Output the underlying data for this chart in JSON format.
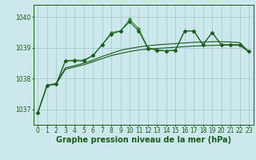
{
  "background_color": "#cce8ec",
  "grid_color": "#aacccc",
  "line_color_dark": "#1a5c1a",
  "line_color_light": "#3a8a3a",
  "xlabel": "Graphe pression niveau de la mer (hPa)",
  "xlabel_fontsize": 7,
  "ylim": [
    1036.5,
    1040.4
  ],
  "xlim": [
    -0.5,
    23.5
  ],
  "yticks": [
    1037,
    1038,
    1039,
    1040
  ],
  "xticks": [
    0,
    1,
    2,
    3,
    4,
    5,
    6,
    7,
    8,
    9,
    10,
    11,
    12,
    13,
    14,
    15,
    16,
    17,
    18,
    19,
    20,
    21,
    22,
    23
  ],
  "series_smooth_x": [
    0,
    1,
    2,
    3,
    4,
    5,
    6,
    7,
    8,
    9,
    10,
    11,
    12,
    13,
    14,
    15,
    16,
    17,
    18,
    19,
    20,
    21,
    22,
    23
  ],
  "series_smooth_y": [
    1036.9,
    1037.78,
    1037.82,
    1038.3,
    1038.38,
    1038.45,
    1038.55,
    1038.65,
    1038.75,
    1038.82,
    1038.88,
    1038.93,
    1038.96,
    1038.98,
    1039.0,
    1039.02,
    1039.04,
    1039.06,
    1039.07,
    1039.08,
    1039.09,
    1039.09,
    1039.08,
    1038.88
  ],
  "series_smooth2_x": [
    0,
    1,
    2,
    3,
    4,
    5,
    6,
    7,
    8,
    9,
    10,
    11,
    12,
    13,
    14,
    15,
    16,
    17,
    18,
    19,
    20,
    21,
    22,
    23
  ],
  "series_smooth2_y": [
    1036.9,
    1037.78,
    1037.85,
    1038.35,
    1038.42,
    1038.5,
    1038.6,
    1038.72,
    1038.82,
    1038.92,
    1038.98,
    1039.03,
    1039.07,
    1039.1,
    1039.12,
    1039.14,
    1039.16,
    1039.18,
    1039.19,
    1039.2,
    1039.2,
    1039.19,
    1039.17,
    1038.88
  ],
  "series_jagged_x": [
    0,
    1,
    2,
    3,
    4,
    5,
    6,
    7,
    8,
    9,
    10,
    11,
    12,
    13,
    14,
    15,
    16,
    17,
    18,
    19,
    20,
    21,
    22,
    23
  ],
  "series_jagged_y": [
    1036.9,
    1037.78,
    1037.82,
    1038.58,
    1038.6,
    1038.6,
    1038.75,
    1039.1,
    1039.5,
    1039.55,
    1039.92,
    1039.62,
    1039.0,
    1038.93,
    1038.9,
    1038.93,
    1039.55,
    1039.55,
    1039.1,
    1039.5,
    1039.1,
    1039.1,
    1039.1,
    1038.88
  ],
  "series_jagged2_x": [
    0,
    1,
    2,
    3,
    4,
    5,
    6,
    7,
    8,
    9,
    10,
    11,
    12,
    13,
    14,
    15,
    16,
    17,
    18,
    19,
    20,
    21,
    22,
    23
  ],
  "series_jagged2_y": [
    1036.9,
    1037.78,
    1037.82,
    1038.58,
    1038.58,
    1038.58,
    1038.75,
    1039.1,
    1039.45,
    1039.55,
    1039.85,
    1039.55,
    1038.98,
    1038.93,
    1038.9,
    1038.93,
    1039.55,
    1039.55,
    1039.1,
    1039.5,
    1039.1,
    1039.1,
    1039.1,
    1038.88
  ],
  "marker_size": 2.5,
  "tick_fontsize": 5.5,
  "linewidth": 0.8
}
